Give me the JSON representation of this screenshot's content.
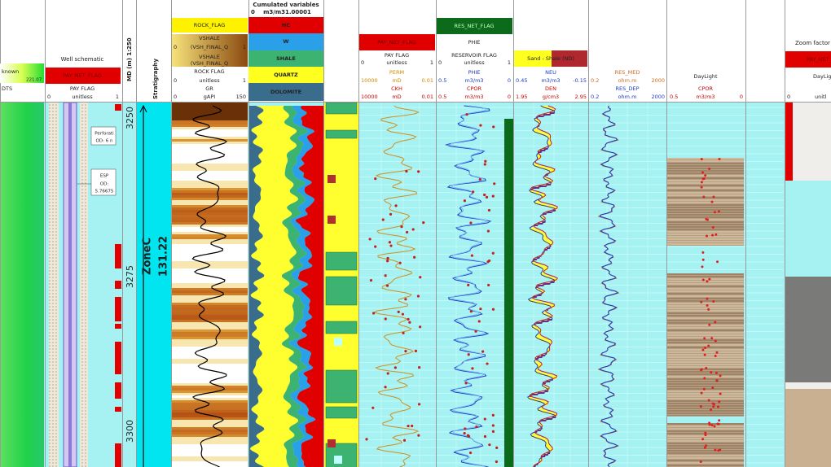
{
  "left_track": {
    "title": "known",
    "value": "221.07",
    "curve": "DTS"
  },
  "well_schematic": {
    "title": "Well schematic",
    "flag": "PAY_NET_FLAG",
    "curve": "PAY FLAG",
    "min": "0",
    "unit": "unitless",
    "max": "1",
    "notes": [
      "Perforati",
      "OD: 6 n",
      "ESP",
      "OD:",
      "5.76675"
    ]
  },
  "md": {
    "title": "MD (m) 1:250",
    "depths": [
      "3250",
      "3275",
      "3300"
    ]
  },
  "stratigraphy": {
    "title": "Stratigraphy",
    "zone": "ZoneC",
    "thickness": "131.22"
  },
  "gr_track": {
    "flag": "ROCK_FLAG",
    "vshale_1": "VSHALE",
    "vsh_1": "(VSH_FINAL_Q",
    "vshale_2": "VSHALE",
    "vsh_2": "(VSH_FINAL_Q",
    "zero": "0",
    "one": "1",
    "rock_flag": "ROCK FLAG",
    "rf_min": "0",
    "rf_unit": "unitless",
    "rf_max": "1",
    "gr": "GR",
    "gr_min": "0",
    "gr_unit": "gAPI",
    "gr_max": "150"
  },
  "cumulated": {
    "title": "Cumulated variables",
    "min": "0",
    "unit": "m3/m3",
    "max": "1.00001",
    "layers": [
      "HC",
      "W",
      "SHALE",
      "QUARTZ",
      "DOLOMITE"
    ]
  },
  "perm_track": {
    "flag": "PAY_NET_FLAG",
    "curve": "PAY FLAG",
    "min": "0",
    "unit": "unitless",
    "max": "1",
    "perm": "PERM",
    "perm_min": "10000",
    "perm_unit": "mD",
    "perm_max": "0.01",
    "ckh": "CKH",
    "ckh_min": "10000",
    "ckh_unit": "mD",
    "ckh_max": "0.01"
  },
  "phie_track": {
    "flag": "RES_NET_FLAG",
    "phie_top": "PHIE",
    "res_flag": "RESERVOIR FLAG",
    "min": "0",
    "unit": "unitless",
    "max": "1",
    "phie": "PHIE",
    "phie_min": "0.5",
    "phie_unit": "m3/m3",
    "phie_max": "0",
    "cpor": "CPOR",
    "cpor_min": "0.5",
    "cpor_unit": "m3/m3",
    "cpor_max": "0"
  },
  "nd_track": {
    "fill": "Sand - Shale (ND)",
    "neu": "NEU",
    "neu_min": "0.45",
    "neu_unit": "m3/m3",
    "neu_max": "-0.15",
    "den": "DEN",
    "den_min": "1.95",
    "den_unit": "g/cm3",
    "den_max": "2.95"
  },
  "res_track": {
    "med": "RES_MED",
    "med_min": "0.2",
    "med_unit": "ohm.m",
    "med_max": "2000",
    "dep": "RES_DEP",
    "dep_min": "0.2",
    "dep_unit": "ohm.m",
    "dep_max": "2000"
  },
  "daylight_track": {
    "title": "DayLight",
    "curve": "CPOR",
    "min": "0.5",
    "unit": "m3/m3",
    "max": "0"
  },
  "zoom_track": {
    "title": "Zoom factor",
    "flag": "PAY_NET_FLAG",
    "day": "DayLigh",
    "min": "0",
    "unit": "unitl"
  }
}
